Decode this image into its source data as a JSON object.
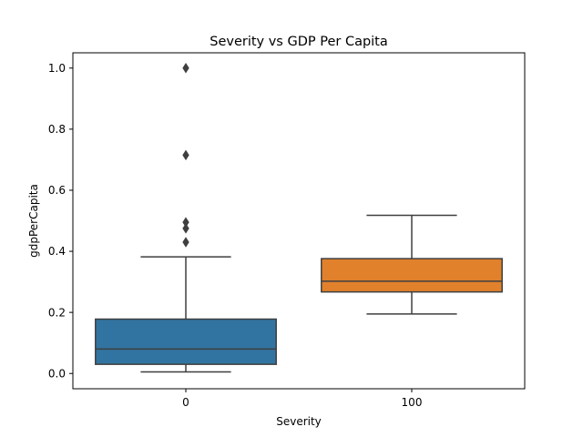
{
  "chart_data": {
    "type": "box",
    "title": "Severity vs GDP Per Capita",
    "xlabel": "Severity",
    "ylabel": "gdpPerCapita",
    "categories": [
      "0",
      "100"
    ],
    "ylim": [
      -0.05,
      1.05
    ],
    "yticks": [
      0.0,
      0.2,
      0.4,
      0.6,
      0.8,
      1.0
    ],
    "ytick_labels": [
      "0.0",
      "0.2",
      "0.4",
      "0.6",
      "0.8",
      "1.0"
    ],
    "grid": false,
    "boxes": [
      {
        "category": "0",
        "color": "#3274a1",
        "whisker_low": 0.005,
        "q1": 0.03,
        "median": 0.08,
        "q3": 0.178,
        "whisker_high": 0.382,
        "outliers": [
          0.43,
          0.475,
          0.495,
          0.715,
          1.0
        ]
      },
      {
        "category": "100",
        "color": "#e1812c",
        "whisker_low": 0.195,
        "q1": 0.267,
        "median": 0.302,
        "q3": 0.376,
        "whisker_high": 0.518,
        "outliers": []
      }
    ]
  }
}
